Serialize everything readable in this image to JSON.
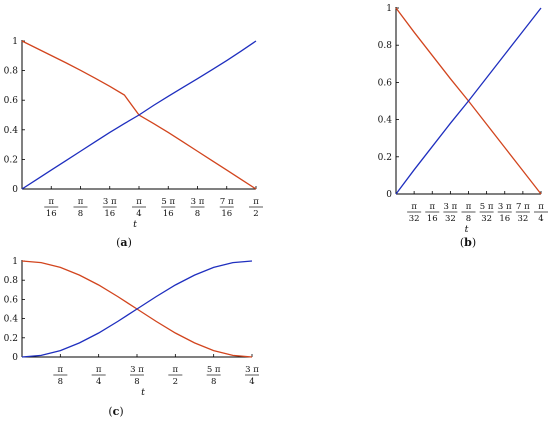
{
  "chart_data": [
    {
      "type": "line",
      "caption_letter": "a",
      "xlabel": "t",
      "ylabel": "",
      "xlim": [
        "0",
        "π/2"
      ],
      "ylim": [
        0,
        1
      ],
      "yticks": [
        "0",
        "0.2",
        "0.4",
        "0.6",
        "0.8",
        "1"
      ],
      "xtick_labels": [
        {
          "num": "π",
          "den": "16"
        },
        {
          "num": "π",
          "den": "8"
        },
        {
          "num": "3 π",
          "den": "16"
        },
        {
          "num": "π",
          "den": "4"
        },
        {
          "num": "5 π",
          "den": "16"
        },
        {
          "num": "3 π",
          "den": "8"
        },
        {
          "num": "7 π",
          "den": "16"
        },
        {
          "num": "π",
          "den": "2"
        }
      ],
      "series": [
        {
          "color": "#d2451e",
          "x": [
            0,
            0.0625,
            0.125,
            0.1875,
            0.25,
            0.3125,
            0.375,
            0.4375,
            0.5,
            0.5625,
            0.625,
            0.6875,
            0.75,
            0.8125,
            0.875,
            0.9375,
            1
          ],
          "values": [
            1.0,
            0.951,
            0.902,
            0.853,
            0.802,
            0.749,
            0.694,
            0.635,
            0.5,
            0.442,
            0.382,
            0.319,
            0.255,
            0.191,
            0.128,
            0.064,
            0.0
          ]
        },
        {
          "color": "#1f2fbf",
          "x": [
            0,
            0.0625,
            0.125,
            0.1875,
            0.25,
            0.3125,
            0.375,
            0.4375,
            0.5,
            0.5625,
            0.625,
            0.6875,
            0.75,
            0.8125,
            0.875,
            0.9375,
            1
          ],
          "values": [
            0.0,
            0.064,
            0.128,
            0.191,
            0.255,
            0.319,
            0.382,
            0.442,
            0.5,
            0.565,
            0.626,
            0.686,
            0.745,
            0.806,
            0.868,
            0.933,
            1.0
          ]
        }
      ]
    },
    {
      "type": "line",
      "caption_letter": "b",
      "xlabel": "t",
      "ylabel": "",
      "xlim": [
        "0",
        "π/4"
      ],
      "ylim": [
        0,
        1
      ],
      "yticks": [
        "0",
        "0.2",
        "0.4",
        "0.6",
        "0.8",
        "1"
      ],
      "xtick_labels": [
        {
          "num": "π",
          "den": "32"
        },
        {
          "num": "π",
          "den": "16"
        },
        {
          "num": "3 π",
          "den": "32"
        },
        {
          "num": "π",
          "den": "8"
        },
        {
          "num": "5 π",
          "den": "32"
        },
        {
          "num": "3 π",
          "den": "16"
        },
        {
          "num": "7 π",
          "den": "32"
        },
        {
          "num": "π",
          "den": "4"
        }
      ],
      "series": [
        {
          "color": "#d2451e",
          "x": [
            0,
            0.125,
            0.25,
            0.375,
            0.5,
            0.625,
            0.75,
            0.875,
            1
          ],
          "values": [
            1.0,
            0.87,
            0.745,
            0.62,
            0.5,
            0.375,
            0.25,
            0.125,
            0.0
          ]
        },
        {
          "color": "#1f2fbf",
          "x": [
            0,
            0.125,
            0.25,
            0.375,
            0.5,
            0.625,
            0.75,
            0.875,
            1
          ],
          "values": [
            0.0,
            0.13,
            0.255,
            0.38,
            0.5,
            0.625,
            0.75,
            0.875,
            1.0
          ]
        }
      ]
    },
    {
      "type": "line",
      "caption_letter": "c",
      "xlabel": "t",
      "ylabel": "",
      "xlim": [
        "0",
        "3π/4"
      ],
      "ylim": [
        0,
        1
      ],
      "yticks": [
        "0",
        "0.2",
        "0.4",
        "0.6",
        "0.8",
        "1"
      ],
      "xtick_labels": [
        {
          "num": "π",
          "den": "8"
        },
        {
          "num": "π",
          "den": "4"
        },
        {
          "num": "3 π",
          "den": "8"
        },
        {
          "num": "π",
          "den": "2"
        },
        {
          "num": "5 π",
          "den": "8"
        },
        {
          "num": "3 π",
          "den": "4"
        }
      ],
      "series": [
        {
          "color": "#d2451e",
          "x": [
            0,
            0.0833,
            0.1667,
            0.25,
            0.3333,
            0.4167,
            0.5,
            0.5833,
            0.6667,
            0.75,
            0.8333,
            0.9167,
            1
          ],
          "values": [
            1.0,
            0.983,
            0.933,
            0.853,
            0.75,
            0.629,
            0.5,
            0.371,
            0.25,
            0.147,
            0.067,
            0.017,
            0.0
          ]
        },
        {
          "color": "#1f2fbf",
          "x": [
            0,
            0.0833,
            0.1667,
            0.25,
            0.3333,
            0.4167,
            0.5,
            0.5833,
            0.6667,
            0.75,
            0.8333,
            0.9167,
            1
          ],
          "values": [
            0.0,
            0.017,
            0.067,
            0.147,
            0.25,
            0.371,
            0.5,
            0.629,
            0.75,
            0.853,
            0.933,
            0.983,
            1.0
          ]
        }
      ]
    }
  ]
}
